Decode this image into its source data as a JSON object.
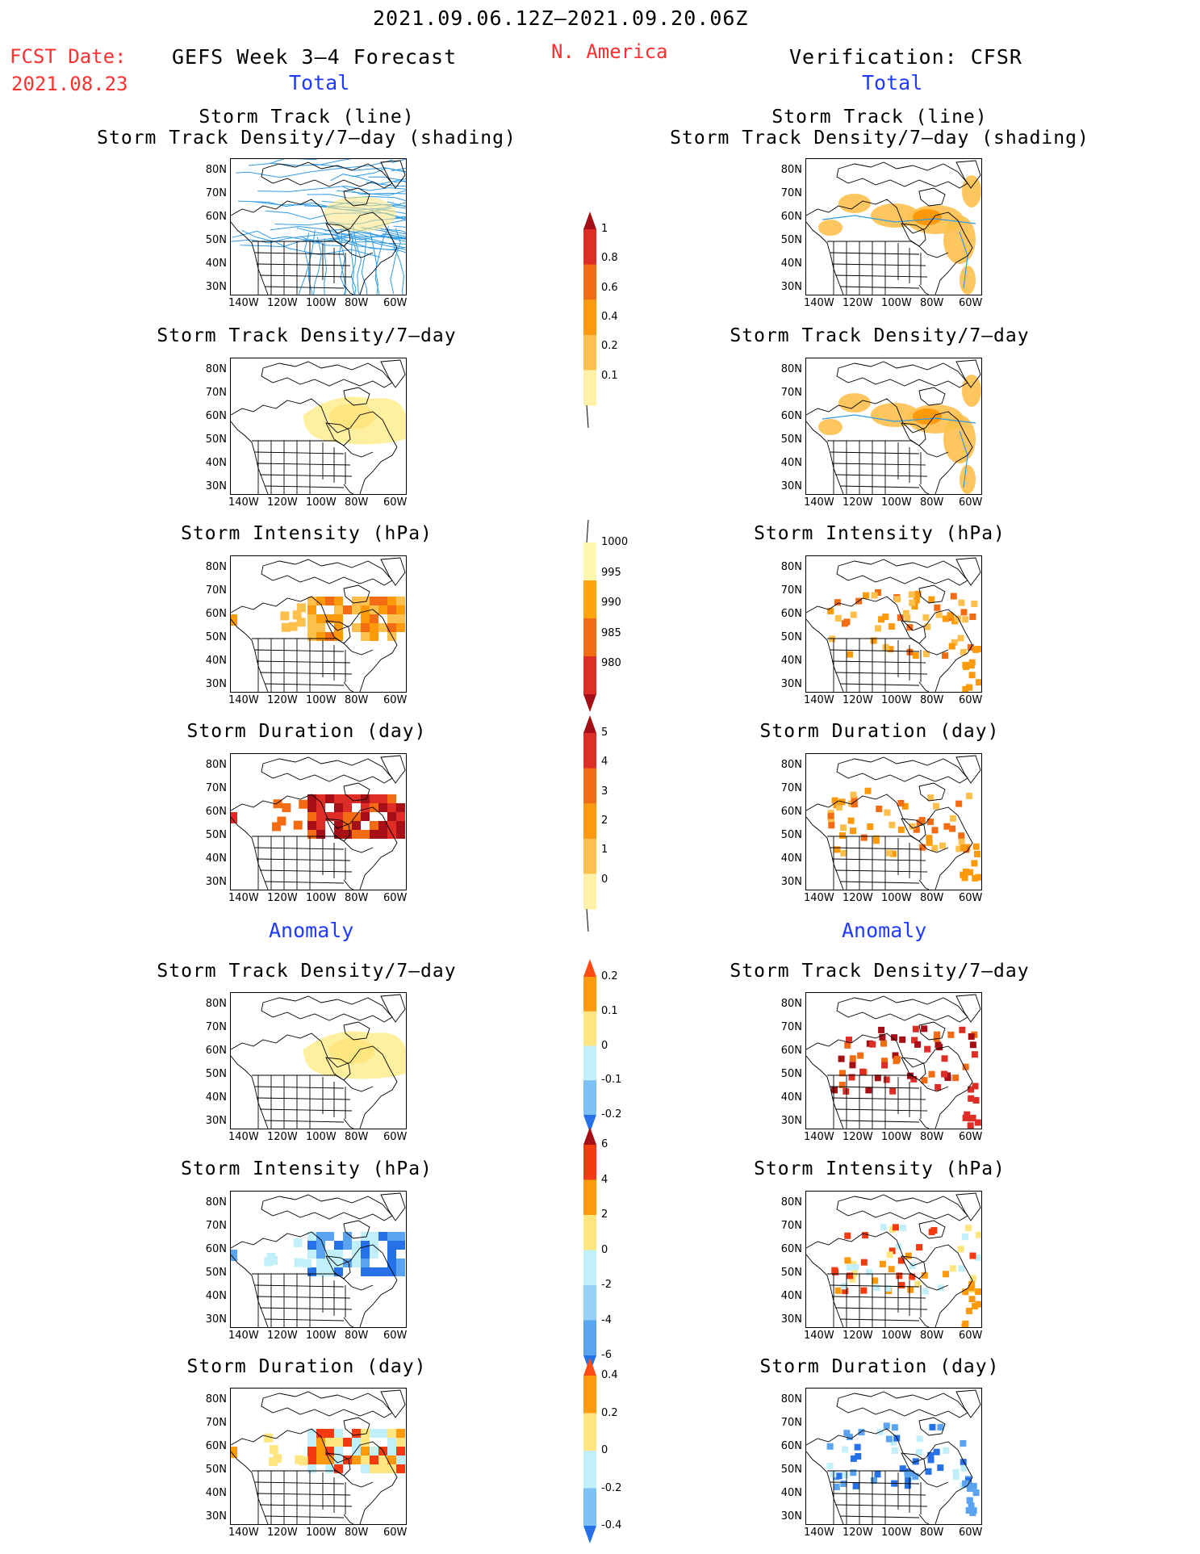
{
  "header": {
    "period": "2021.09.06.12Z–2021.09.20.06Z",
    "fcst_label": "FCST Date:",
    "fcst_date": "2021.08.23",
    "region": "N. America",
    "left_title": "GEFS Week 3–4 Forecast",
    "right_title": "Verification: CFSR",
    "total_label": "Total",
    "anomaly_label": "Anomaly"
  },
  "panel_titles": {
    "track_line": "Storm Track (line)",
    "track_shading": "Storm Track Density/7–day (shading)",
    "density": "Storm Track Density/7–day",
    "intensity": "Storm Intensity (hPa)",
    "duration": "Storm Duration (day)"
  },
  "axes": {
    "lat_ticks": [
      "80N",
      "70N",
      "60N",
      "50N",
      "40N",
      "30N"
    ],
    "lon_ticks": [
      "140W",
      "120W",
      "100W",
      "80W",
      "60W"
    ]
  },
  "colorbars": {
    "density_total": {
      "labels": [
        "1",
        "0.8",
        "0.6",
        "0.4",
        "0.2",
        "0.1"
      ],
      "colors": [
        "#a50f15",
        "#de2d26",
        "#f36b13",
        "#fd9a0b",
        "#fdc04c",
        "#fff2a8"
      ]
    },
    "intensity_total": {
      "labels": [
        "1000",
        "995",
        "990",
        "985",
        "980"
      ],
      "colors": [
        "#fff6b0",
        "#fda50b",
        "#f36b13",
        "#de2d26",
        "#a50f15"
      ]
    },
    "duration_total": {
      "labels": [
        "5",
        "4",
        "3",
        "2",
        "1",
        "0"
      ],
      "colors": [
        "#a50f15",
        "#de2d26",
        "#f36b13",
        "#fd9a0b",
        "#fdc04c",
        "#fff2a8"
      ]
    },
    "density_anom": {
      "labels": [
        "0.2",
        "0.1",
        "0",
        "-0.1",
        "-0.2"
      ],
      "colors": [
        "#ff4b14",
        "#fd9a0b",
        "#ffe680",
        "#c2f0fa",
        "#7dc0f5",
        "#2671e8"
      ]
    },
    "intensity_anom": {
      "labels": [
        "6",
        "4",
        "2",
        "0",
        "-2",
        "-4",
        "-6"
      ],
      "colors": [
        "#a50f15",
        "#f33a10",
        "#fd9a0b",
        "#ffe680",
        "#c2f0fa",
        "#96d1f5",
        "#5aa3f0",
        "#2671e8"
      ]
    },
    "duration_anom": {
      "labels": [
        "0.4",
        "0.2",
        "0",
        "-0.2",
        "-0.4"
      ],
      "colors": [
        "#ff4b14",
        "#fd9a0b",
        "#ffe680",
        "#c2f0fa",
        "#7dc0f5",
        "#2671e8"
      ]
    }
  }
}
